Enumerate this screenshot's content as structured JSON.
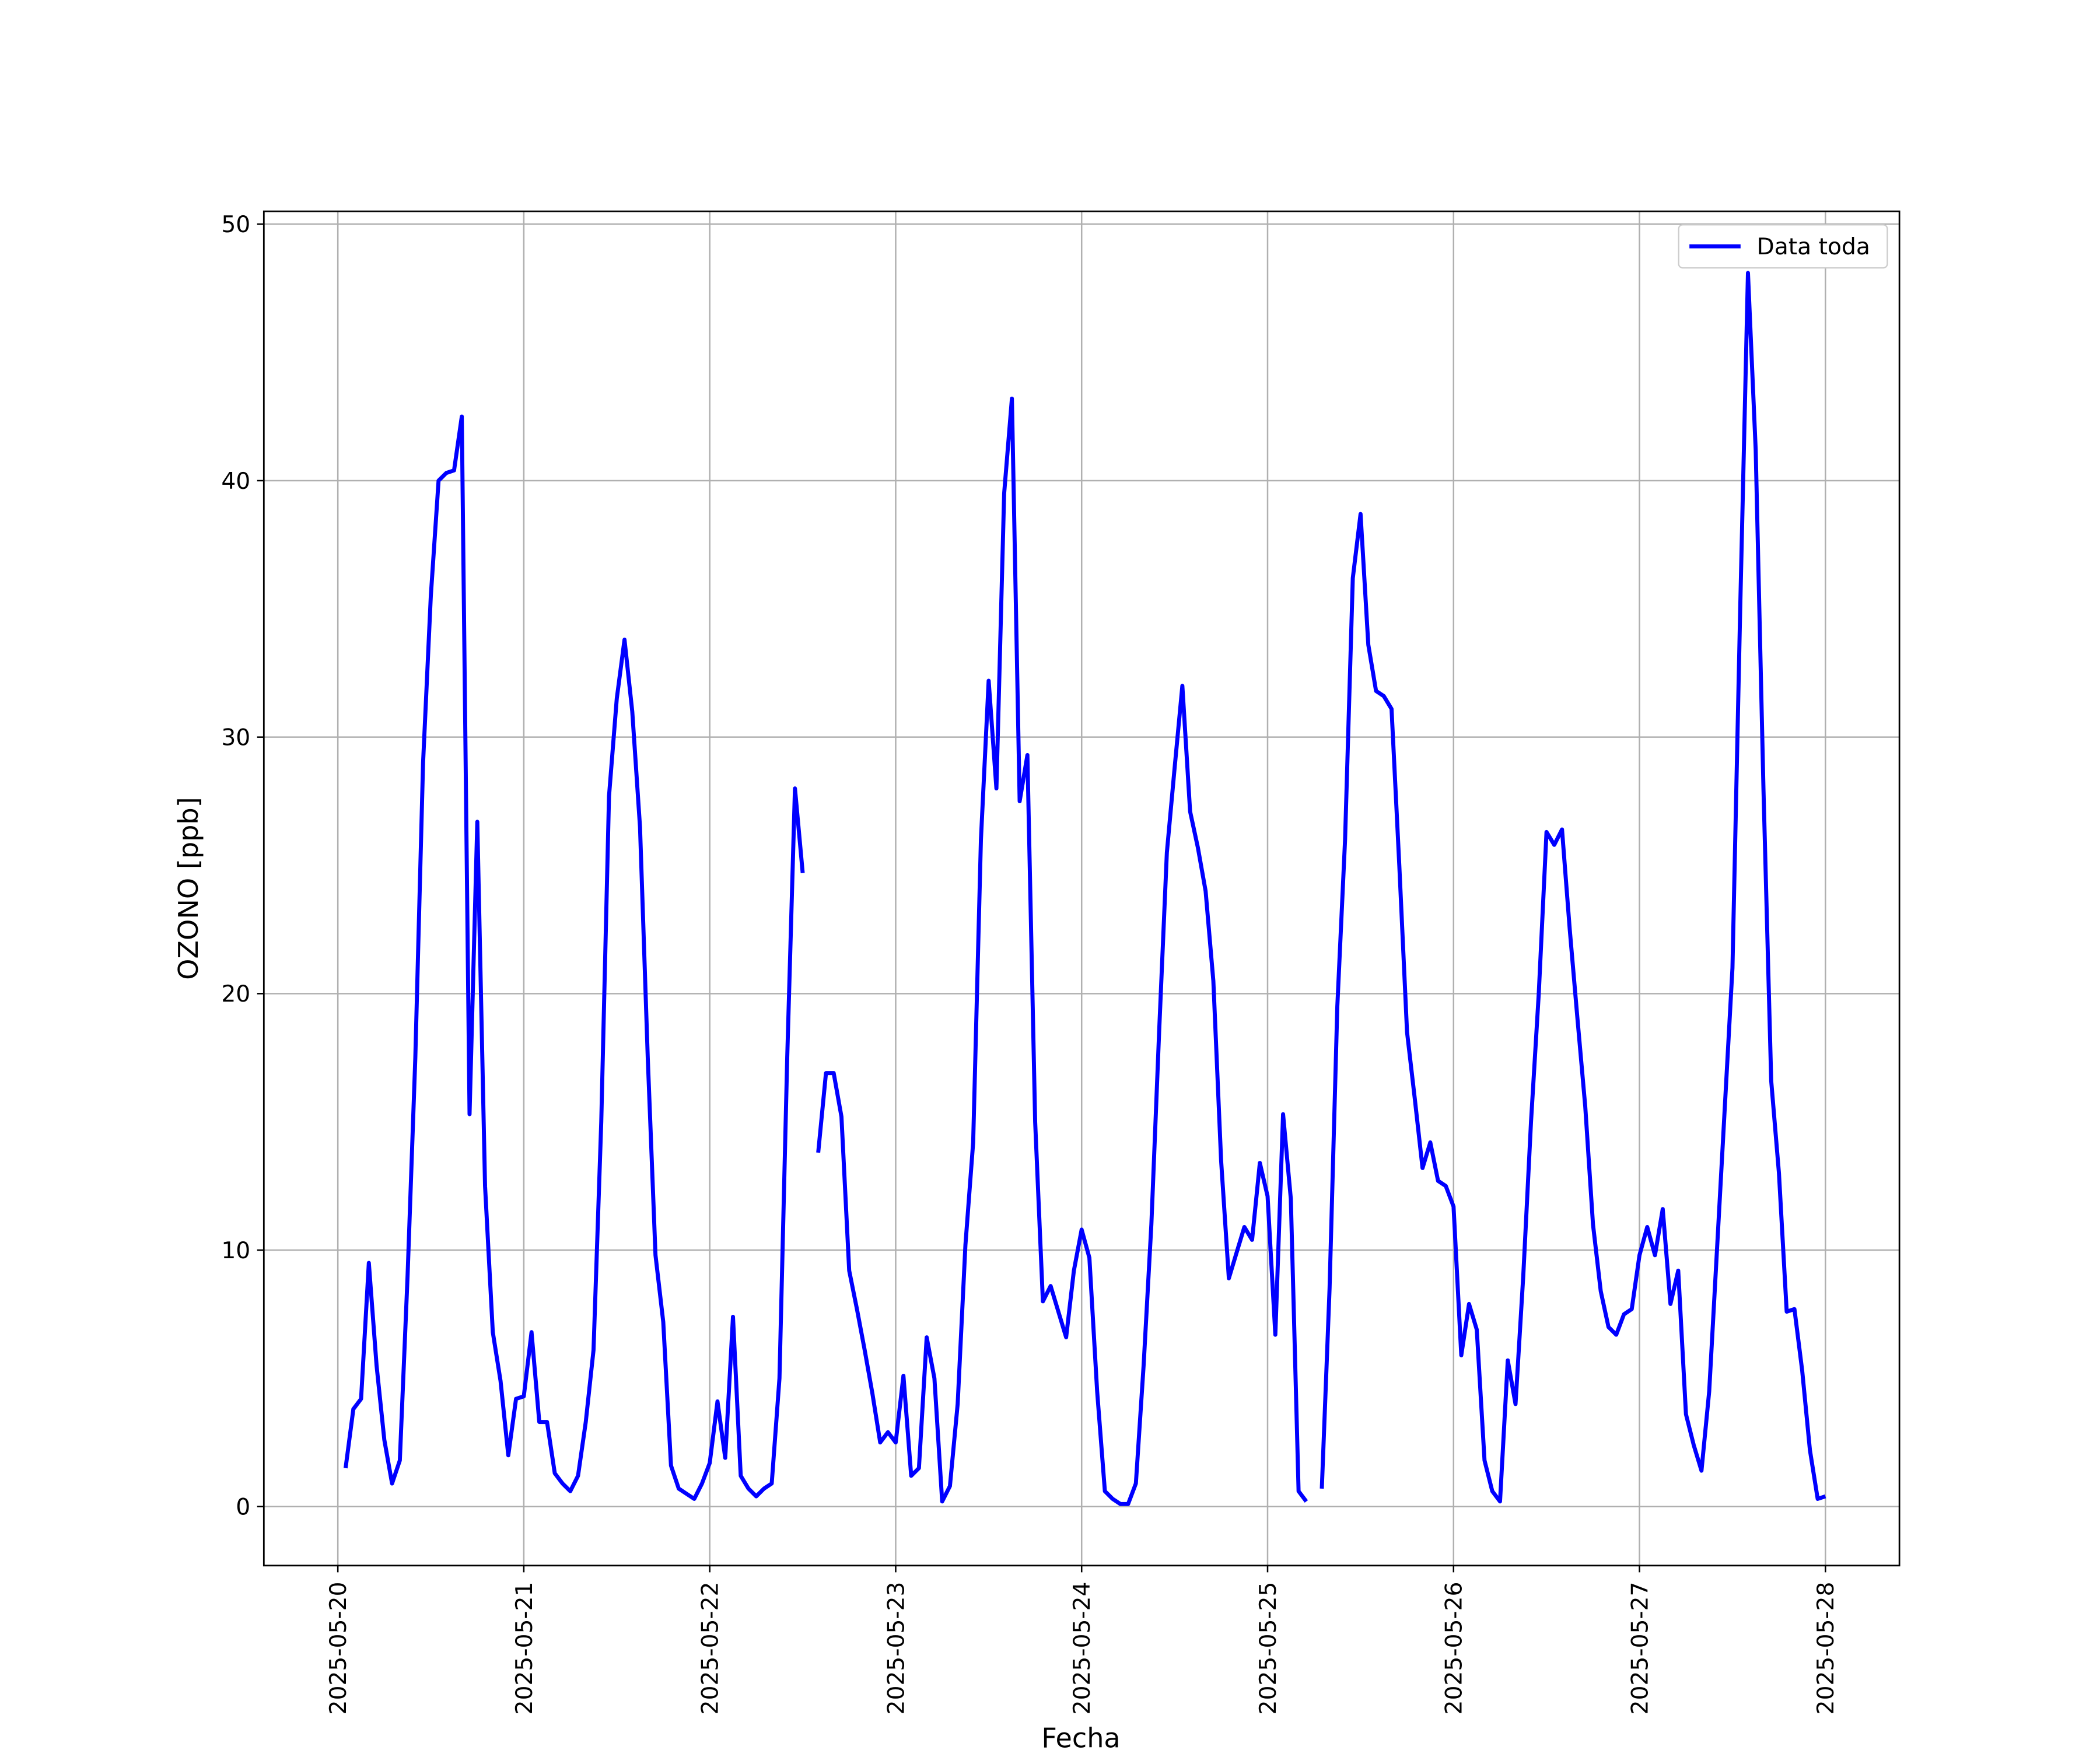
{
  "chart_data": {
    "type": "line",
    "xlabel": "Fecha",
    "ylabel": "OZONO [ppb]",
    "x": [
      "2025-05-20 01:00",
      "2025-05-20 02:00",
      "2025-05-20 03:00",
      "2025-05-20 04:00",
      "2025-05-20 05:00",
      "2025-05-20 06:00",
      "2025-05-20 07:00",
      "2025-05-20 08:00",
      "2025-05-20 09:00",
      "2025-05-20 10:00",
      "2025-05-20 11:00",
      "2025-05-20 12:00",
      "2025-05-20 13:00",
      "2025-05-20 14:00",
      "2025-05-20 15:00",
      "2025-05-20 16:00",
      "2025-05-20 17:00",
      "2025-05-20 18:00",
      "2025-05-20 19:00",
      "2025-05-20 20:00",
      "2025-05-20 21:00",
      "2025-05-20 22:00",
      "2025-05-20 23:00",
      "2025-05-21 00:00",
      "2025-05-21 01:00",
      "2025-05-21 02:00",
      "2025-05-21 03:00",
      "2025-05-21 04:00",
      "2025-05-21 05:00",
      "2025-05-21 06:00",
      "2025-05-21 07:00",
      "2025-05-21 08:00",
      "2025-05-21 09:00",
      "2025-05-21 10:00",
      "2025-05-21 11:00",
      "2025-05-21 12:00",
      "2025-05-21 13:00",
      "2025-05-21 14:00",
      "2025-05-21 15:00",
      "2025-05-21 16:00",
      "2025-05-21 17:00",
      "2025-05-21 18:00",
      "2025-05-21 19:00",
      "2025-05-21 20:00",
      "2025-05-21 21:00",
      "2025-05-21 22:00",
      "2025-05-21 23:00",
      "2025-05-22 00:00",
      "2025-05-22 01:00",
      "2025-05-22 02:00",
      "2025-05-22 03:00",
      "2025-05-22 04:00",
      "2025-05-22 05:00",
      "2025-05-22 06:00",
      "2025-05-22 07:00",
      "2025-05-22 08:00",
      "2025-05-22 09:00",
      "2025-05-22 10:00",
      "2025-05-22 11:00",
      "2025-05-22 12:00",
      "2025-05-22 13:00",
      "2025-05-22 14:00",
      "2025-05-22 15:00",
      "2025-05-22 16:00",
      "2025-05-22 17:00",
      "2025-05-22 18:00",
      "2025-05-22 19:00",
      "2025-05-22 20:00",
      "2025-05-22 21:00",
      "2025-05-22 22:00",
      "2025-05-22 23:00",
      "2025-05-23 00:00",
      "2025-05-23 01:00",
      "2025-05-23 02:00",
      "2025-05-23 03:00",
      "2025-05-23 04:00",
      "2025-05-23 05:00",
      "2025-05-23 06:00",
      "2025-05-23 07:00",
      "2025-05-23 08:00",
      "2025-05-23 09:00",
      "2025-05-23 10:00",
      "2025-05-23 11:00",
      "2025-05-23 12:00",
      "2025-05-23 13:00",
      "2025-05-23 14:00",
      "2025-05-23 15:00",
      "2025-05-23 16:00",
      "2025-05-23 17:00",
      "2025-05-23 18:00",
      "2025-05-23 19:00",
      "2025-05-23 20:00",
      "2025-05-23 21:00",
      "2025-05-23 22:00",
      "2025-05-23 23:00",
      "2025-05-24 00:00",
      "2025-05-24 01:00",
      "2025-05-24 02:00",
      "2025-05-24 03:00",
      "2025-05-24 04:00",
      "2025-05-24 05:00",
      "2025-05-24 06:00",
      "2025-05-24 07:00",
      "2025-05-24 08:00",
      "2025-05-24 09:00",
      "2025-05-24 10:00",
      "2025-05-24 11:00",
      "2025-05-24 12:00",
      "2025-05-24 13:00",
      "2025-05-24 14:00",
      "2025-05-24 15:00",
      "2025-05-24 16:00",
      "2025-05-24 17:00",
      "2025-05-24 18:00",
      "2025-05-24 19:00",
      "2025-05-24 20:00",
      "2025-05-24 21:00",
      "2025-05-24 22:00",
      "2025-05-24 23:00",
      "2025-05-25 00:00",
      "2025-05-25 01:00",
      "2025-05-25 02:00",
      "2025-05-25 03:00",
      "2025-05-25 04:00",
      "2025-05-25 05:00",
      "2025-05-25 06:00",
      "2025-05-25 07:00",
      "2025-05-25 08:00",
      "2025-05-25 09:00",
      "2025-05-25 10:00",
      "2025-05-25 11:00",
      "2025-05-25 12:00",
      "2025-05-25 13:00",
      "2025-05-25 14:00",
      "2025-05-25 15:00",
      "2025-05-25 16:00",
      "2025-05-25 17:00",
      "2025-05-25 18:00",
      "2025-05-25 19:00",
      "2025-05-25 20:00",
      "2025-05-25 21:00",
      "2025-05-25 22:00",
      "2025-05-25 23:00",
      "2025-05-26 00:00",
      "2025-05-26 01:00",
      "2025-05-26 02:00",
      "2025-05-26 03:00",
      "2025-05-26 04:00",
      "2025-05-26 05:00",
      "2025-05-26 06:00",
      "2025-05-26 07:00",
      "2025-05-26 08:00",
      "2025-05-26 09:00",
      "2025-05-26 10:00",
      "2025-05-26 11:00",
      "2025-05-26 12:00",
      "2025-05-26 13:00",
      "2025-05-26 14:00",
      "2025-05-26 15:00",
      "2025-05-26 16:00",
      "2025-05-26 17:00",
      "2025-05-26 18:00",
      "2025-05-26 19:00",
      "2025-05-26 20:00",
      "2025-05-26 21:00",
      "2025-05-26 22:00",
      "2025-05-26 23:00",
      "2025-05-27 00:00",
      "2025-05-27 01:00",
      "2025-05-27 02:00",
      "2025-05-27 03:00",
      "2025-05-27 04:00",
      "2025-05-27 05:00",
      "2025-05-27 06:00",
      "2025-05-27 07:00",
      "2025-05-27 08:00",
      "2025-05-27 09:00",
      "2025-05-27 10:00",
      "2025-05-27 11:00",
      "2025-05-27 12:00",
      "2025-05-27 13:00",
      "2025-05-27 14:00",
      "2025-05-27 15:00",
      "2025-05-27 16:00",
      "2025-05-27 17:00",
      "2025-05-27 18:00",
      "2025-05-27 19:00",
      "2025-05-27 20:00",
      "2025-05-27 21:00",
      "2025-05-27 22:00",
      "2025-05-27 23:00",
      "2025-05-28 00:00"
    ],
    "series": [
      {
        "name": "Data toda",
        "color": "#0000ff",
        "values": [
          1.5,
          3.8,
          4.2,
          9.5,
          5.5,
          2.6,
          0.9,
          1.8,
          9,
          17.5,
          29,
          35.5,
          40,
          40.3,
          40.4,
          42.5,
          15.3,
          26.7,
          12.5,
          6.8,
          4.9,
          2,
          4.2,
          4.3,
          6.8,
          3.3,
          3.3,
          1.3,
          0.9,
          0.6,
          1.2,
          3.3,
          6.1,
          15,
          27.7,
          31.5,
          33.8,
          31,
          26.5,
          17.5,
          9.8,
          7.2,
          1.6,
          0.7,
          0.5,
          0.3,
          0.9,
          1.7,
          4.1,
          1.9,
          7.4,
          1.2,
          0.7,
          0.4,
          0.7,
          0.9,
          5,
          17.5,
          28,
          24.7,
          null,
          13.8,
          16.9,
          16.9,
          15.2,
          9.2,
          7.7,
          6.1,
          4.4,
          2.5,
          2.9,
          2.5,
          5.1,
          1.2,
          1.5,
          6.6,
          5,
          0.2,
          0.8,
          4,
          10.2,
          14.2,
          26,
          32.2,
          28,
          39.5,
          43.2,
          27.5,
          29.3,
          15,
          8,
          8.6,
          7.6,
          6.6,
          9.2,
          10.8,
          9.7,
          4.5,
          0.6,
          0.3,
          0.1,
          0.1,
          0.9,
          5.5,
          11,
          18.5,
          25.5,
          28.8,
          32,
          27.1,
          25.7,
          24,
          20.5,
          13.5,
          8.9,
          9.9,
          10.9,
          10.4,
          13.4,
          12.1,
          6.7,
          15.3,
          12,
          0.6,
          0.2,
          null,
          0.7,
          8.5,
          19.5,
          26,
          36.2,
          38.7,
          33.6,
          31.8,
          31.6,
          31.1,
          25,
          18.5,
          15.9,
          13.2,
          14.2,
          12.7,
          12.5,
          11.7,
          5.9,
          7.9,
          6.9,
          1.8,
          0.6,
          0.2,
          5.7,
          4,
          9,
          15,
          20,
          26.3,
          25.8,
          26.4,
          22.5,
          19,
          15.6,
          11,
          8.4,
          7,
          6.7,
          7.5,
          7.7,
          9.8,
          10.9,
          9.8,
          11.6,
          7.9,
          9.2,
          3.6,
          2.4,
          1.4,
          4.5,
          10,
          15.5,
          21,
          35,
          48.1,
          41.2,
          28,
          16.6,
          13,
          7.6,
          7.7,
          5.3,
          2.2,
          0.3,
          0.4
        ]
      }
    ],
    "xlim": [
      "2025-05-19 14:27",
      "2025-05-28 09:33"
    ],
    "xticks": [
      "2025-05-20",
      "2025-05-21",
      "2025-05-22",
      "2025-05-23",
      "2025-05-24",
      "2025-05-25",
      "2025-05-26",
      "2025-05-27",
      "2025-05-28"
    ],
    "ylim": [
      -2.3,
      50.5
    ],
    "yticks": [
      0,
      10,
      20,
      30,
      40,
      50
    ],
    "grid": true,
    "legend": "upper right"
  }
}
